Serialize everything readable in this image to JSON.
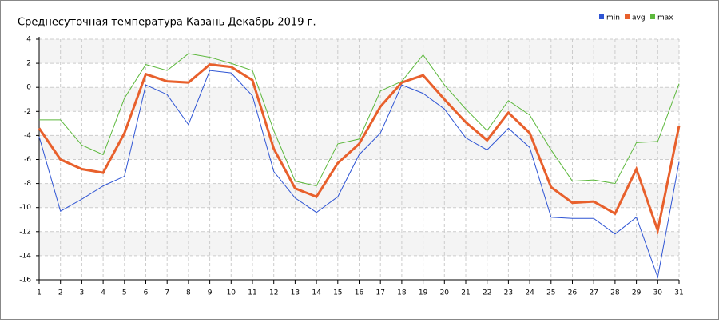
{
  "chart_data": {
    "type": "line",
    "title": "Среднесуточная температура Казань  Декабрь 2019 г.",
    "x": [
      1,
      2,
      3,
      4,
      5,
      6,
      7,
      8,
      9,
      10,
      11,
      12,
      13,
      14,
      15,
      16,
      17,
      18,
      19,
      20,
      21,
      22,
      23,
      24,
      25,
      26,
      27,
      28,
      29,
      30,
      31
    ],
    "xlim": [
      1,
      31
    ],
    "xticks": [
      1,
      2,
      3,
      4,
      5,
      6,
      7,
      8,
      9,
      10,
      11,
      12,
      13,
      14,
      15,
      16,
      17,
      18,
      19,
      20,
      21,
      22,
      23,
      24,
      25,
      26,
      27,
      28,
      29,
      30,
      31
    ],
    "ylim": [
      -16,
      4
    ],
    "yticks": [
      4,
      2,
      0,
      -2,
      -4,
      -6,
      -8,
      -10,
      -12,
      -14,
      -16
    ],
    "grid": true,
    "legend": "top-right",
    "series": [
      {
        "name": "min",
        "color": "#2f55d4",
        "values": [
          -4.1,
          -10.3,
          -9.3,
          -8.2,
          -7.4,
          0.2,
          -0.6,
          -3.1,
          1.4,
          1.2,
          -0.7,
          -7.0,
          -9.2,
          -10.4,
          -9.1,
          -5.6,
          -3.8,
          0.2,
          -0.5,
          -1.8,
          -4.2,
          -5.2,
          -3.4,
          -5.0,
          -10.8,
          -10.9,
          -10.9,
          -12.2,
          -10.8,
          -15.8,
          -6.2
        ]
      },
      {
        "name": "avg",
        "color": "#e8602c",
        "values": [
          -3.4,
          -6.0,
          -6.8,
          -7.1,
          -3.8,
          1.1,
          0.5,
          0.4,
          1.9,
          1.7,
          0.6,
          -5.1,
          -8.4,
          -9.1,
          -6.3,
          -4.7,
          -1.6,
          0.4,
          1.0,
          -1.0,
          -2.9,
          -4.4,
          -2.1,
          -3.8,
          -8.3,
          -9.6,
          -9.5,
          -10.5,
          -6.8,
          -11.9,
          -3.2
        ]
      },
      {
        "name": "max",
        "color": "#5cb83c",
        "values": [
          -2.7,
          -2.7,
          -4.8,
          -5.6,
          -0.9,
          1.9,
          1.4,
          2.8,
          2.5,
          2.0,
          1.4,
          -3.6,
          -7.8,
          -8.2,
          -4.7,
          -4.3,
          -0.3,
          0.5,
          2.7,
          0.2,
          -1.8,
          -3.6,
          -1.1,
          -2.3,
          -5.2,
          -7.8,
          -7.7,
          -8.0,
          -4.6,
          -4.5,
          0.3
        ]
      }
    ]
  }
}
